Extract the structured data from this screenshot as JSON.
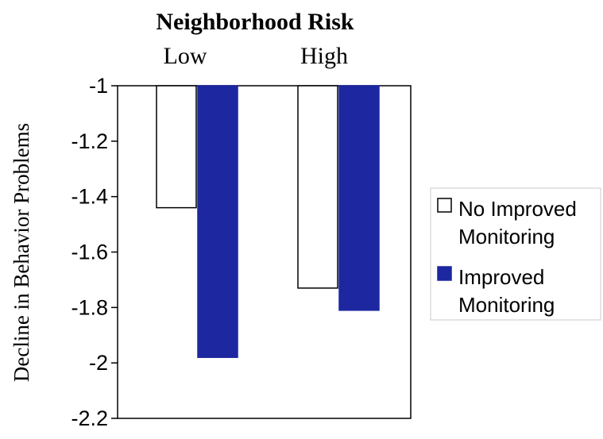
{
  "chart_data": {
    "type": "bar",
    "title": "Neighborhood Risk",
    "categories": [
      "Low",
      "High"
    ],
    "ylabel": "Decline in Behavior Problems",
    "xlabel": "",
    "ylim": [
      -2.2,
      -1.0
    ],
    "yticks": [
      "-1",
      "-1.2",
      "-1.4",
      "-1.6",
      "-1.8",
      "-2",
      "-2.2"
    ],
    "ytick_values": [
      -1.0,
      -1.2,
      -1.4,
      -1.6,
      -1.8,
      -2.0,
      -2.2
    ],
    "bar_origin": -1.0,
    "series": [
      {
        "name": "No Improved Monitoring",
        "name_lines": [
          "No Improved",
          "Monitoring"
        ],
        "values": [
          -1.44,
          -1.73
        ],
        "fill": "#ffffff",
        "stroke": "#000000"
      },
      {
        "name": "Improved Monitoring",
        "name_lines": [
          "Improved",
          "Monitoring"
        ],
        "values": [
          -1.98,
          -1.81
        ],
        "fill": "#1c27a0",
        "stroke": "#1c27a0"
      }
    ],
    "legend_position": "right",
    "grid": false
  }
}
